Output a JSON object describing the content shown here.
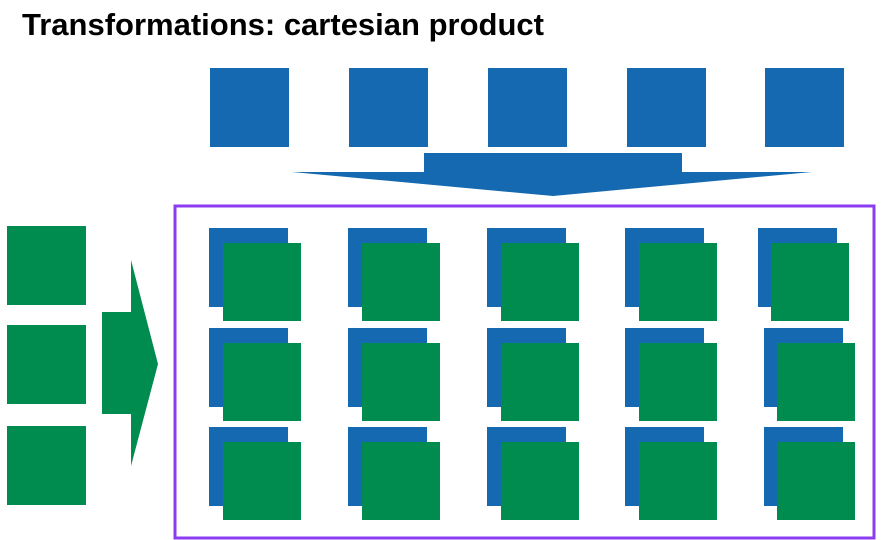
{
  "title": "Transformations: cartesian product",
  "colors": {
    "blue": "#1469B0",
    "green": "#008C4E",
    "frame": "#8B3CF0",
    "background": "#FFFFFF"
  },
  "diagram": {
    "top_set_count": 5,
    "left_set_count": 3,
    "result_rows": 3,
    "result_cols": 5
  }
}
